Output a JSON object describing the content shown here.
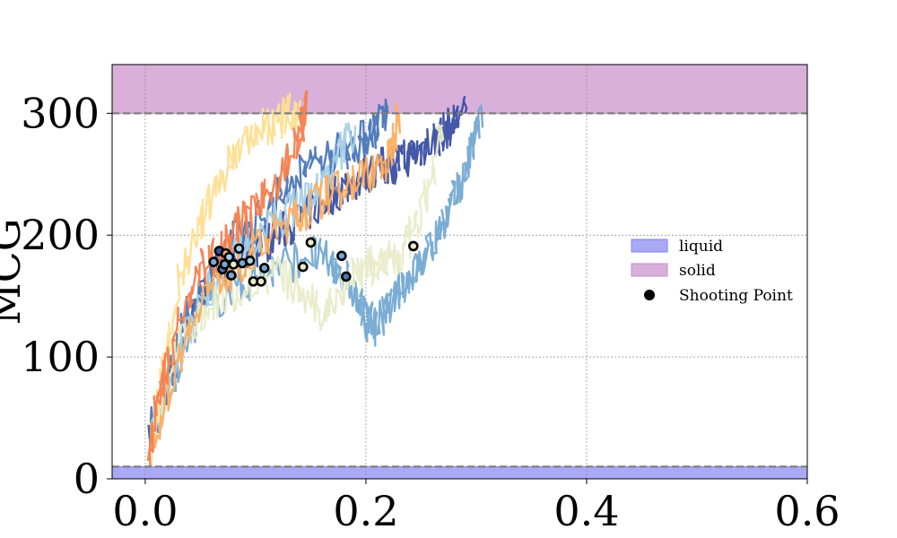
{
  "chart_data": {
    "type": "line",
    "title": "",
    "xlabel": "",
    "ylabel": "MCG",
    "xlim": [
      -0.03,
      0.6
    ],
    "ylim": [
      0,
      340
    ],
    "xticks": [
      0.0,
      0.2,
      0.4,
      0.6
    ],
    "xtick_labels": [
      "0.0",
      "0.2",
      "0.4",
      "0.6"
    ],
    "yticks": [
      0,
      100,
      200,
      300
    ],
    "ytick_labels": [
      "0",
      "100",
      "200",
      "300"
    ],
    "grid": true,
    "legend_position": "center-right",
    "regions": [
      {
        "name": "liquid",
        "y_from": 0,
        "y_to": 10,
        "color": "#a9a9f5",
        "edge_color": "#8080ee"
      },
      {
        "name": "solid",
        "y_from": 300,
        "y_to": 340,
        "color": "#d8b0da",
        "edge_color": "#c090c8"
      }
    ],
    "threshold_lines": [
      10,
      300
    ],
    "series": [
      {
        "color": "#3a4fa3",
        "x": [
          0.005,
          0.03,
          0.06,
          0.09,
          0.12,
          0.15,
          0.18,
          0.21,
          0.23,
          0.25,
          0.27,
          0.29
        ],
        "y": [
          30,
          110,
          165,
          185,
          200,
          220,
          240,
          255,
          260,
          270,
          285,
          300
        ]
      },
      {
        "color": "#4a76b8",
        "x": [
          0.005,
          0.04,
          0.08,
          0.12,
          0.15,
          0.18,
          0.2,
          0.22
        ],
        "y": [
          40,
          140,
          195,
          230,
          260,
          270,
          280,
          300
        ]
      },
      {
        "color": "#74a9d2",
        "x": [
          0.005,
          0.05,
          0.1,
          0.15,
          0.18,
          0.2,
          0.21,
          0.23,
          0.25,
          0.27,
          0.29,
          0.305
        ],
        "y": [
          35,
          140,
          165,
          185,
          170,
          130,
          125,
          155,
          175,
          210,
          250,
          300
        ]
      },
      {
        "color": "#a6d0e5",
        "x": [
          0.005,
          0.05,
          0.09,
          0.13,
          0.16,
          0.19
        ],
        "y": [
          30,
          150,
          190,
          220,
          240,
          290
        ]
      },
      {
        "color": "#e8ecc9",
        "x": [
          0.005,
          0.03,
          0.07,
          0.12,
          0.16,
          0.19,
          0.21,
          0.23,
          0.25,
          0.27
        ],
        "y": [
          20,
          120,
          150,
          170,
          135,
          170,
          175,
          180,
          215,
          290
        ]
      },
      {
        "color": "#fedf91",
        "x": [
          0.005,
          0.03,
          0.06,
          0.09,
          0.12,
          0.14
        ],
        "y": [
          30,
          160,
          230,
          280,
          295,
          305
        ]
      },
      {
        "color": "#fdae61",
        "x": [
          0.005,
          0.05,
          0.09,
          0.13,
          0.16,
          0.19,
          0.22,
          0.23
        ],
        "y": [
          30,
          150,
          180,
          210,
          230,
          245,
          260,
          300
        ]
      },
      {
        "color": "#f4804e",
        "x": [
          0.003,
          0.02,
          0.05,
          0.08,
          0.11,
          0.14,
          0.145
        ],
        "y": [
          25,
          100,
          170,
          205,
          230,
          280,
          305
        ]
      }
    ],
    "shooting_points": {
      "name": "Shooting Point",
      "points": [
        {
          "x": 0.062,
          "y": 178,
          "fill": "#74a9d2"
        },
        {
          "x": 0.067,
          "y": 187,
          "fill": "#3a4fa3"
        },
        {
          "x": 0.07,
          "y": 172,
          "fill": "#4a76b8"
        },
        {
          "x": 0.072,
          "y": 176,
          "fill": "#74a9d2"
        },
        {
          "x": 0.073,
          "y": 185,
          "fill": "#fdae61"
        },
        {
          "x": 0.076,
          "y": 182,
          "fill": "#a6d0e5"
        },
        {
          "x": 0.078,
          "y": 167,
          "fill": "#74a9d2"
        },
        {
          "x": 0.08,
          "y": 176,
          "fill": "#e8ecc9"
        },
        {
          "x": 0.085,
          "y": 189,
          "fill": "#a6d0e5"
        },
        {
          "x": 0.088,
          "y": 177,
          "fill": "#74a9d2"
        },
        {
          "x": 0.095,
          "y": 179,
          "fill": "#a6d0e5"
        },
        {
          "x": 0.098,
          "y": 162,
          "fill": "#e8ecc9"
        },
        {
          "x": 0.105,
          "y": 162,
          "fill": "#e8ecc9"
        },
        {
          "x": 0.108,
          "y": 173,
          "fill": "#74a9d2"
        },
        {
          "x": 0.143,
          "y": 174,
          "fill": "#e8ecc9"
        },
        {
          "x": 0.15,
          "y": 194,
          "fill": "#e8ecc9"
        },
        {
          "x": 0.178,
          "y": 183,
          "fill": "#74a9d2"
        },
        {
          "x": 0.182,
          "y": 166,
          "fill": "#4a76b8"
        },
        {
          "x": 0.243,
          "y": 191,
          "fill": "#e8ecc9"
        }
      ]
    }
  }
}
